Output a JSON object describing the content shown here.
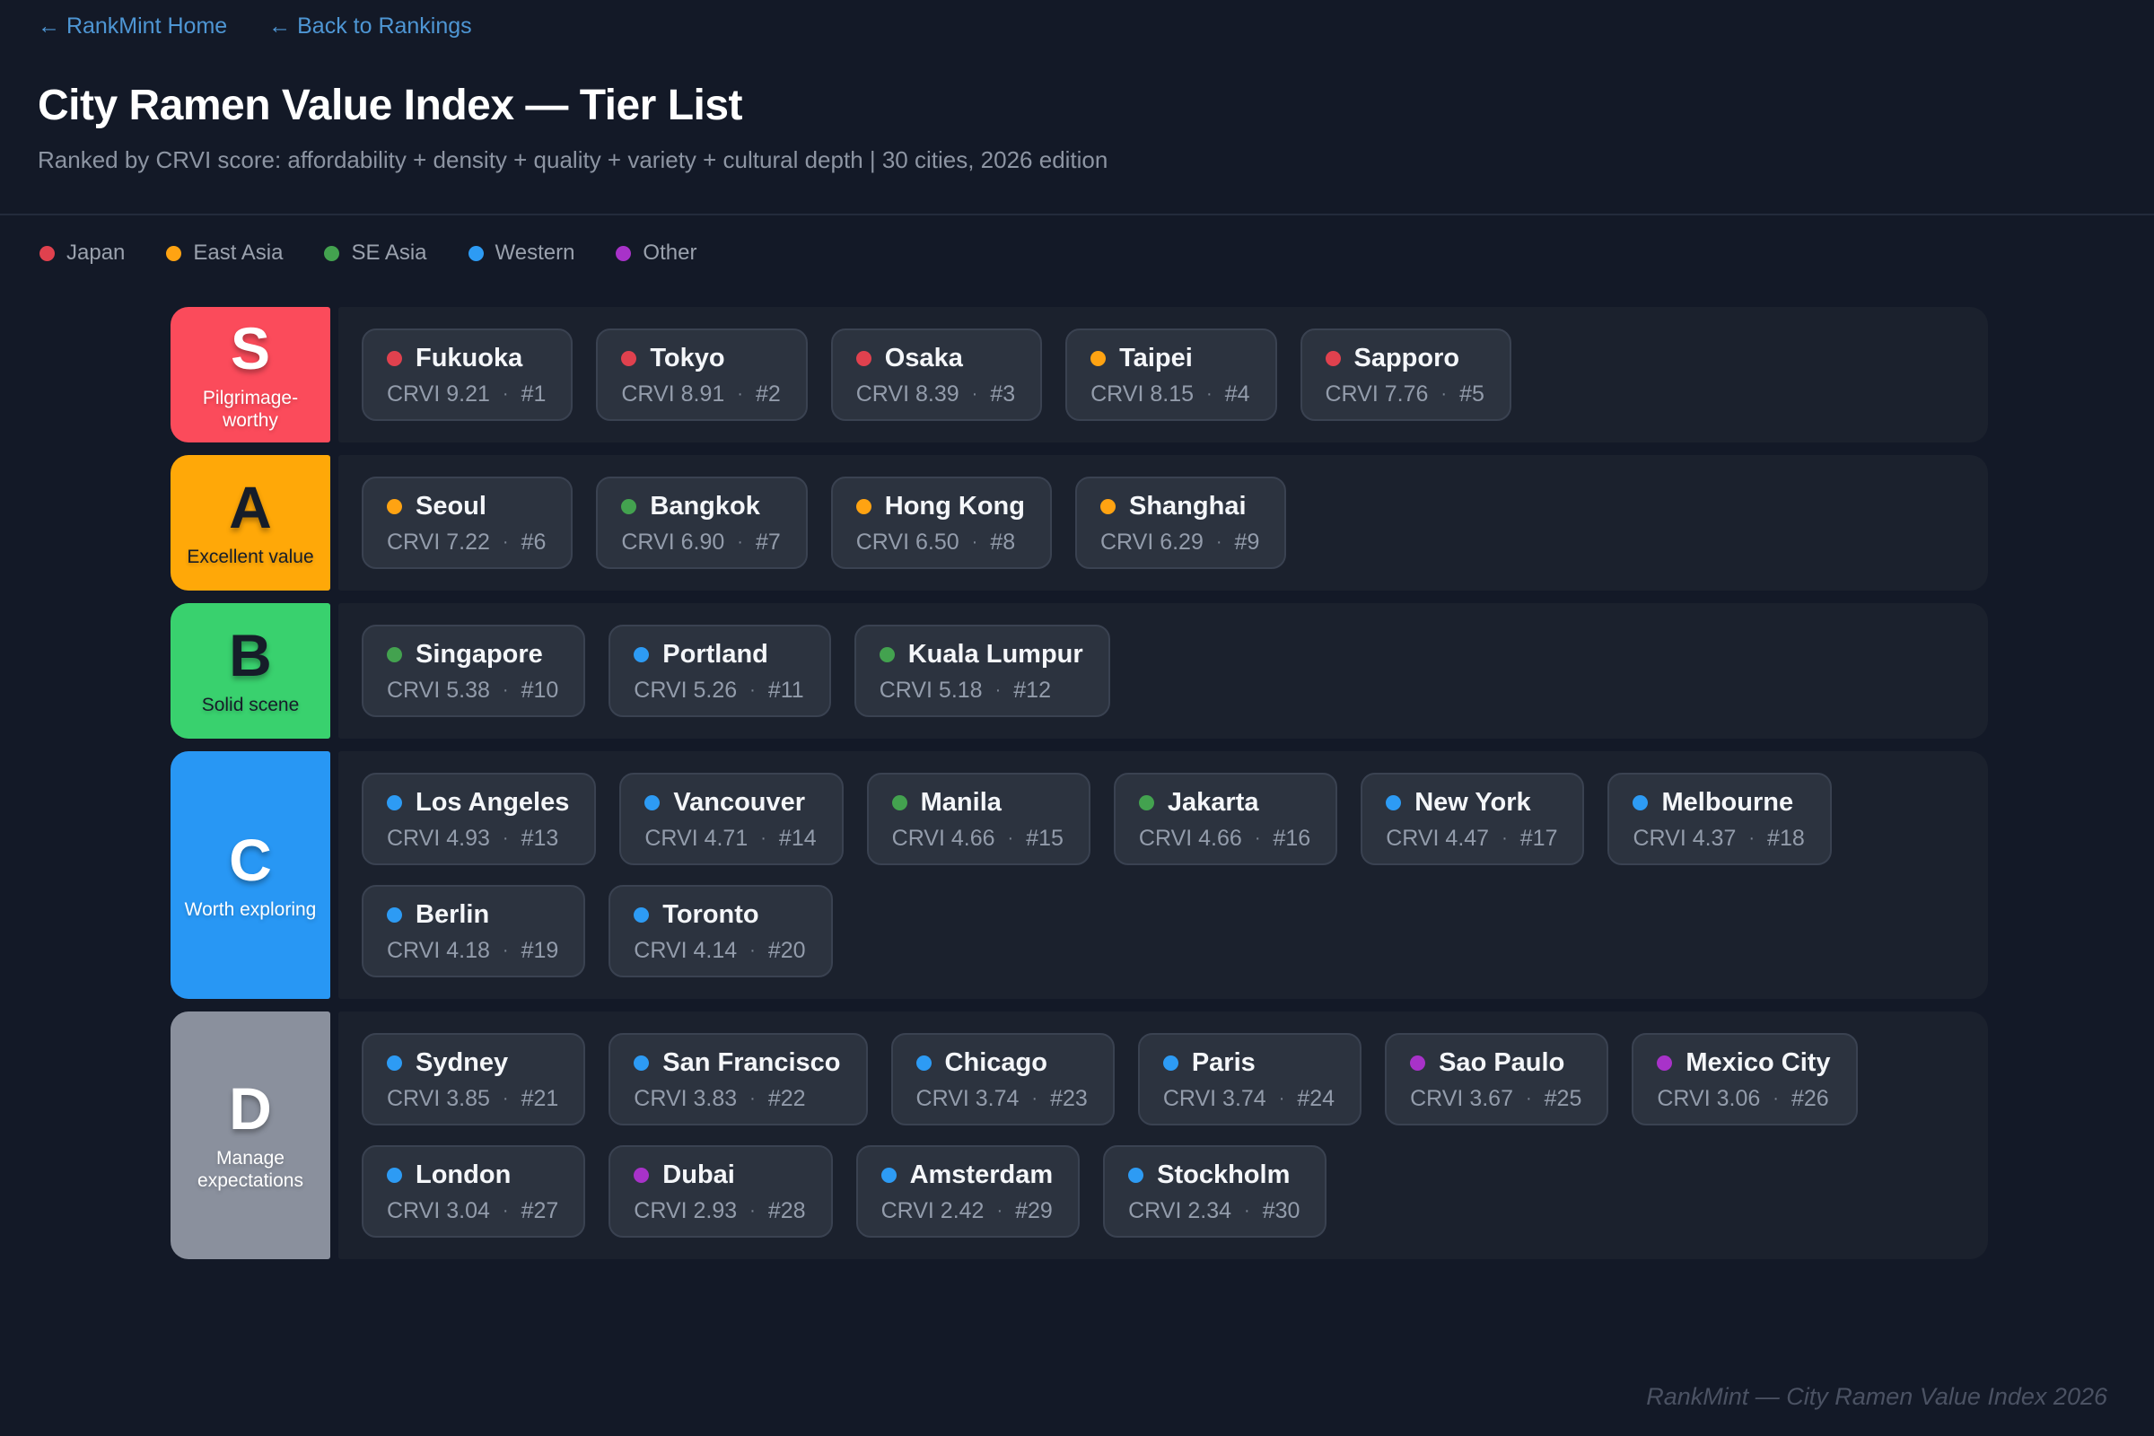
{
  "nav": {
    "home": "← RankMint Home",
    "back": "← Back to Rankings"
  },
  "header": {
    "title": "City Ramen Value Index — Tier List",
    "subtitle": "Ranked by CRVI score: affordability + density + quality + variety + cultural depth  |  30 cities, 2026 edition"
  },
  "legend": {
    "items": [
      {
        "label": "Japan",
        "color": "#e0414e"
      },
      {
        "label": "East Asia",
        "color": "#ffa312"
      },
      {
        "label": "SE Asia",
        "color": "#43a24f"
      },
      {
        "label": "Western",
        "color": "#2d9bf4"
      },
      {
        "label": "Other",
        "color": "#a832c9"
      }
    ]
  },
  "regions": {
    "japan": "#e0414e",
    "east_asia": "#ffa312",
    "se_asia": "#43a24f",
    "western": "#2d9bf4",
    "other": "#a832c9"
  },
  "ui": {
    "separator": "·"
  },
  "tiers": [
    {
      "letter": "S",
      "subtitle": "Pilgrimage-worthy",
      "color": "#fb4b5b",
      "text_color": "#ffffff",
      "cities": [
        {
          "name": "Fukuoka",
          "region": "japan",
          "crvi": "CRVI 9.21",
          "rank": "#1"
        },
        {
          "name": "Tokyo",
          "region": "japan",
          "crvi": "CRVI 8.91",
          "rank": "#2"
        },
        {
          "name": "Osaka",
          "region": "japan",
          "crvi": "CRVI 8.39",
          "rank": "#3"
        },
        {
          "name": "Taipei",
          "region": "east_asia",
          "crvi": "CRVI 8.15",
          "rank": "#4"
        },
        {
          "name": "Sapporo",
          "region": "japan",
          "crvi": "CRVI 7.76",
          "rank": "#5"
        }
      ]
    },
    {
      "letter": "A",
      "subtitle": "Excellent value",
      "color": "#ffa808",
      "text_color": "#161d29",
      "cities": [
        {
          "name": "Seoul",
          "region": "east_asia",
          "crvi": "CRVI 7.22",
          "rank": "#6"
        },
        {
          "name": "Bangkok",
          "region": "se_asia",
          "crvi": "CRVI 6.90",
          "rank": "#7"
        },
        {
          "name": "Hong Kong",
          "region": "east_asia",
          "crvi": "CRVI 6.50",
          "rank": "#8"
        },
        {
          "name": "Shanghai",
          "region": "east_asia",
          "crvi": "CRVI 6.29",
          "rank": "#9"
        }
      ]
    },
    {
      "letter": "B",
      "subtitle": "Solid scene",
      "color": "#39d16e",
      "text_color": "#161d29",
      "cities": [
        {
          "name": "Singapore",
          "region": "se_asia",
          "crvi": "CRVI 5.38",
          "rank": "#10"
        },
        {
          "name": "Portland",
          "region": "western",
          "crvi": "CRVI 5.26",
          "rank": "#11"
        },
        {
          "name": "Kuala Lumpur",
          "region": "se_asia",
          "crvi": "CRVI 5.18",
          "rank": "#12"
        }
      ]
    },
    {
      "letter": "C",
      "subtitle": "Worth exploring",
      "color": "#2897f4",
      "text_color": "#ffffff",
      "cities": [
        {
          "name": "Los Angeles",
          "region": "western",
          "crvi": "CRVI 4.93",
          "rank": "#13"
        },
        {
          "name": "Vancouver",
          "region": "western",
          "crvi": "CRVI 4.71",
          "rank": "#14"
        },
        {
          "name": "Manila",
          "region": "se_asia",
          "crvi": "CRVI 4.66",
          "rank": "#15"
        },
        {
          "name": "Jakarta",
          "region": "se_asia",
          "crvi": "CRVI 4.66",
          "rank": "#16"
        },
        {
          "name": "New York",
          "region": "western",
          "crvi": "CRVI 4.47",
          "rank": "#17"
        },
        {
          "name": "Melbourne",
          "region": "western",
          "crvi": "CRVI 4.37",
          "rank": "#18"
        },
        {
          "name": "Berlin",
          "region": "western",
          "crvi": "CRVI 4.18",
          "rank": "#19"
        },
        {
          "name": "Toronto",
          "region": "western",
          "crvi": "CRVI 4.14",
          "rank": "#20"
        }
      ]
    },
    {
      "letter": "D",
      "subtitle": "Manage expectations",
      "color": "#8a909d",
      "text_color": "#ffffff",
      "cities": [
        {
          "name": "Sydney",
          "region": "western",
          "crvi": "CRVI 3.85",
          "rank": "#21"
        },
        {
          "name": "San Francisco",
          "region": "western",
          "crvi": "CRVI 3.83",
          "rank": "#22"
        },
        {
          "name": "Chicago",
          "region": "western",
          "crvi": "CRVI 3.74",
          "rank": "#23"
        },
        {
          "name": "Paris",
          "region": "western",
          "crvi": "CRVI 3.74",
          "rank": "#24"
        },
        {
          "name": "Sao Paulo",
          "region": "other",
          "crvi": "CRVI 3.67",
          "rank": "#25"
        },
        {
          "name": "Mexico City",
          "region": "other",
          "crvi": "CRVI 3.06",
          "rank": "#26"
        },
        {
          "name": "London",
          "region": "western",
          "crvi": "CRVI 3.04",
          "rank": "#27"
        },
        {
          "name": "Dubai",
          "region": "other",
          "crvi": "CRVI 2.93",
          "rank": "#28"
        },
        {
          "name": "Amsterdam",
          "region": "western",
          "crvi": "CRVI 2.42",
          "rank": "#29"
        },
        {
          "name": "Stockholm",
          "region": "western",
          "crvi": "CRVI 2.34",
          "rank": "#30"
        }
      ]
    }
  ],
  "footer": "RankMint — City Ramen Value Index 2026"
}
